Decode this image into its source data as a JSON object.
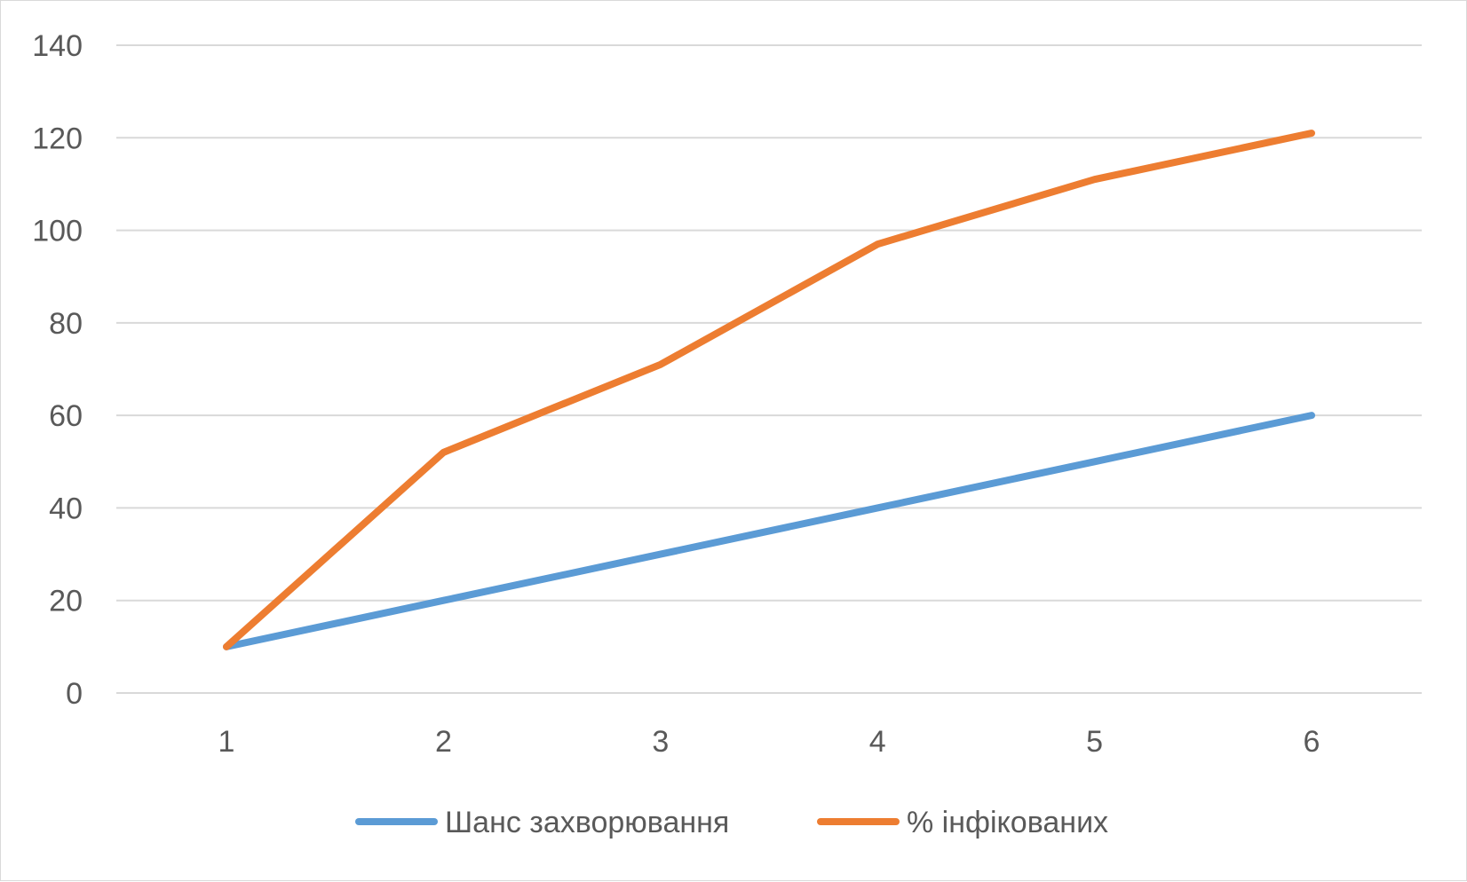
{
  "chart_data": {
    "type": "line",
    "title": "",
    "xlabel": "",
    "ylabel": "",
    "categories": [
      "1",
      "2",
      "3",
      "4",
      "5",
      "6"
    ],
    "series": [
      {
        "name": "Шанс захворювання",
        "values": [
          10,
          20,
          30,
          40,
          50,
          60
        ],
        "color": "#5b9bd5"
      },
      {
        "name": "% інфікованих",
        "values": [
          10,
          52,
          71,
          97,
          111,
          121
        ],
        "color": "#ed7d31"
      }
    ],
    "ylim": [
      0,
      140
    ],
    "yticks": [
      "0",
      "20",
      "40",
      "60",
      "80",
      "100",
      "120",
      "140"
    ],
    "grid": true,
    "legend": "bottom"
  }
}
